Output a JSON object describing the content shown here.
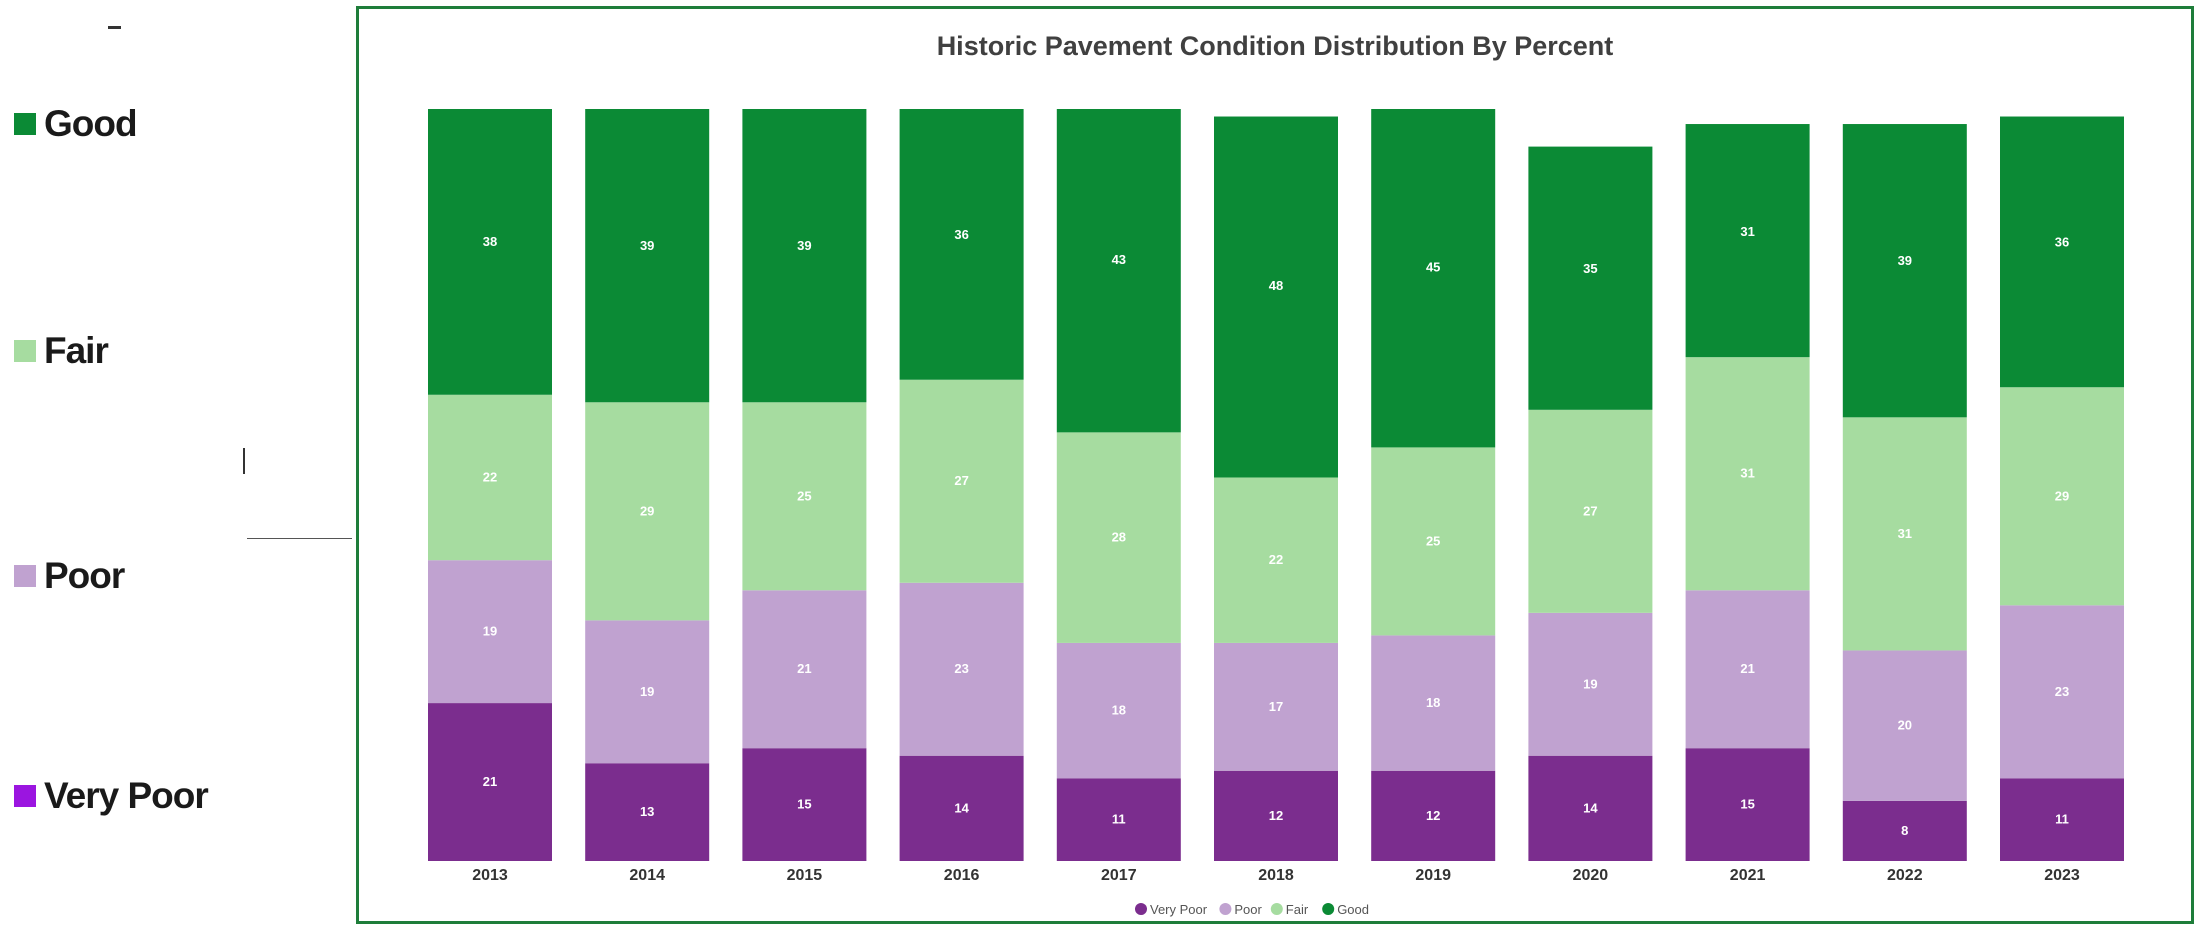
{
  "side_legend": [
    {
      "label": "Good",
      "color": "#0b8a35"
    },
    {
      "label": "Fair",
      "color": "#a6dca0"
    },
    {
      "label": "Poor",
      "color": "#c0a2d0"
    },
    {
      "label": "Very Poor",
      "color": "#9b15e0"
    }
  ],
  "chart_data": {
    "type": "bar",
    "stacked": true,
    "title": "Historic Pavement Condition Distribution By Percent",
    "categories": [
      "2013",
      "2014",
      "2015",
      "2016",
      "2017",
      "2018",
      "2019",
      "2020",
      "2021",
      "2022",
      "2023"
    ],
    "series": [
      {
        "name": "Very Poor",
        "color": "#7b2d8e",
        "values": [
          21,
          13,
          15,
          14,
          11,
          12,
          12,
          14,
          15,
          8,
          11
        ]
      },
      {
        "name": "Poor",
        "color": "#c0a2d0",
        "values": [
          19,
          19,
          21,
          23,
          18,
          17,
          18,
          19,
          21,
          20,
          23
        ]
      },
      {
        "name": "Fair",
        "color": "#a6dca0",
        "values": [
          22,
          29,
          25,
          27,
          28,
          22,
          25,
          27,
          31,
          31,
          29
        ]
      },
      {
        "name": "Good",
        "color": "#0b8a35",
        "values": [
          38,
          39,
          39,
          36,
          43,
          48,
          45,
          35,
          31,
          39,
          36
        ]
      }
    ],
    "legend_position": "bottom",
    "grid": false
  }
}
